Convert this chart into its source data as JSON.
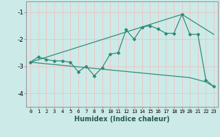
{
  "xlabel": "Humidex (Indice chaleur)",
  "bg_color": "#cceae7",
  "line_color": "#2e8b7a",
  "grid_color": "#e8c8c8",
  "spine_color": "#999999",
  "xlim": [
    -0.5,
    23.5
  ],
  "ylim": [
    -4.5,
    -0.6
  ],
  "xticks": [
    0,
    1,
    2,
    3,
    4,
    5,
    6,
    7,
    8,
    9,
    10,
    11,
    12,
    13,
    14,
    15,
    16,
    17,
    18,
    19,
    20,
    21,
    22,
    23
  ],
  "yticks": [
    -4,
    -3,
    -2,
    -1
  ],
  "line1_x": [
    0,
    1,
    2,
    3,
    4,
    5,
    6,
    7,
    8,
    9,
    10,
    11,
    12,
    13,
    14,
    15,
    16,
    17,
    18,
    19,
    20,
    21,
    22,
    23
  ],
  "line1_y": [
    -2.85,
    -2.65,
    -2.75,
    -2.8,
    -2.8,
    -2.85,
    -3.2,
    -3.0,
    -3.35,
    -3.05,
    -2.55,
    -2.5,
    -1.65,
    -2.0,
    -1.55,
    -1.5,
    -1.62,
    -1.78,
    -1.78,
    -1.08,
    -1.82,
    -1.82,
    -3.5,
    -3.75
  ],
  "line2_x": [
    0,
    19,
    23
  ],
  "line2_y": [
    -2.85,
    -1.08,
    -1.82
  ],
  "line3_x": [
    0,
    20,
    22,
    23
  ],
  "line3_y": [
    -2.85,
    -3.42,
    -3.58,
    -3.75
  ]
}
